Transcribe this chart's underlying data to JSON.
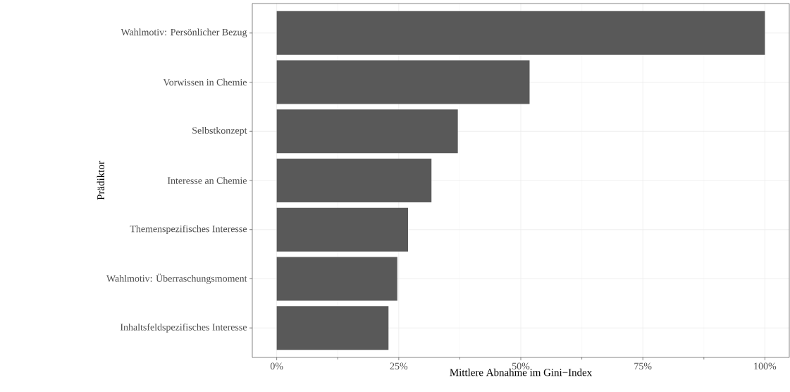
{
  "chart_data": {
    "type": "bar",
    "orientation": "horizontal",
    "xlabel": "Mittlere Abnahme im Gini−Index",
    "ylabel": "Prädiktor",
    "categories": [
      "Wahlmotiv: Persönlicher Bezug",
      "Vorwissen in Chemie",
      "Selbstkonzept",
      "Interesse an Chemie",
      "Themenspezifisches Interesse",
      "Wahlmotiv: Überraschungsmoment",
      "Inhaltsfeldspezifisches Interesse"
    ],
    "values": [
      100,
      51.8,
      37.1,
      31.7,
      26.9,
      24.7,
      22.9
    ],
    "color": "#595959",
    "xlim": [
      -5,
      105
    ],
    "xticks": [
      {
        "value": 0,
        "label": "0%"
      },
      {
        "value": 25,
        "label": "25%"
      },
      {
        "value": 50,
        "label": "50%"
      },
      {
        "value": 75,
        "label": "75%"
      },
      {
        "value": 100,
        "label": "100%"
      }
    ],
    "grid": true
  }
}
